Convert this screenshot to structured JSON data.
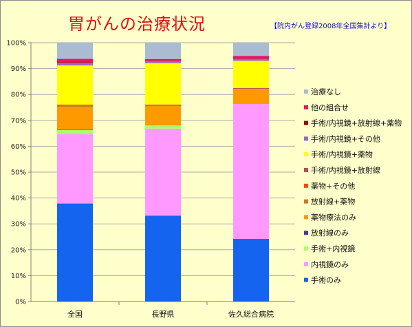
{
  "title": "胃がんの治療状況",
  "source_note": "【院内がん登録2008年全国集計より】",
  "chart_data": {
    "type": "bar",
    "stacked": true,
    "normalized": true,
    "title": "胃がんの治療状況",
    "xlabel": "",
    "ylabel": "",
    "ylim": [
      0,
      100
    ],
    "y_ticks": [
      "0%",
      "10%",
      "20%",
      "30%",
      "40%",
      "50%",
      "60%",
      "70%",
      "80%",
      "90%",
      "100%"
    ],
    "grid": true,
    "legend_position": "right",
    "categories": [
      "全国",
      "長野県",
      "佐久総合病院"
    ],
    "series": [
      {
        "name": "手術のみ",
        "color": "#1464F0",
        "values": [
          37.5,
          33.2,
          24.2
        ]
      },
      {
        "name": "内視鏡のみ",
        "color": "#FF99FF",
        "values": [
          26.5,
          33.6,
          52.1
        ]
      },
      {
        "name": "手術+内視鏡",
        "color": "#AAFF66",
        "values": [
          1.6,
          1.2,
          0.0
        ]
      },
      {
        "name": "放射線のみ",
        "color": "#4B3C96",
        "values": [
          0.1,
          0.0,
          0.0
        ]
      },
      {
        "name": "薬物療法のみ",
        "color": "#FF9900",
        "values": [
          8.8,
          7.6,
          5.9
        ]
      },
      {
        "name": "放射線+薬物",
        "color": "#CC7722",
        "values": [
          0.5,
          0.0,
          0.0
        ]
      },
      {
        "name": "薬物+その他",
        "color": "#FF4400",
        "values": [
          0.2,
          0.3,
          0.0
        ]
      },
      {
        "name": "手術/内視鏡+放射線",
        "color": "#B05050",
        "values": [
          0.1,
          0.2,
          0.3
        ]
      },
      {
        "name": "手術/内視鏡+薬物",
        "color": "#FFFF00",
        "values": [
          15.0,
          16.0,
          10.5
        ]
      },
      {
        "name": "手術/内視鏡+その他",
        "color": "#9966CC",
        "values": [
          1.0,
          0.8,
          0.8
        ]
      },
      {
        "name": "手術/内視鏡+放射線+薬物",
        "color": "#990000",
        "values": [
          0.2,
          0.1,
          0.1
        ]
      },
      {
        "name": "他の組合せ",
        "color": "#EE1166",
        "values": [
          1.3,
          0.7,
          1.0
        ]
      },
      {
        "name": "治療なし",
        "color": "#AABBD2",
        "values": [
          6.2,
          6.3,
          5.1
        ]
      }
    ]
  }
}
